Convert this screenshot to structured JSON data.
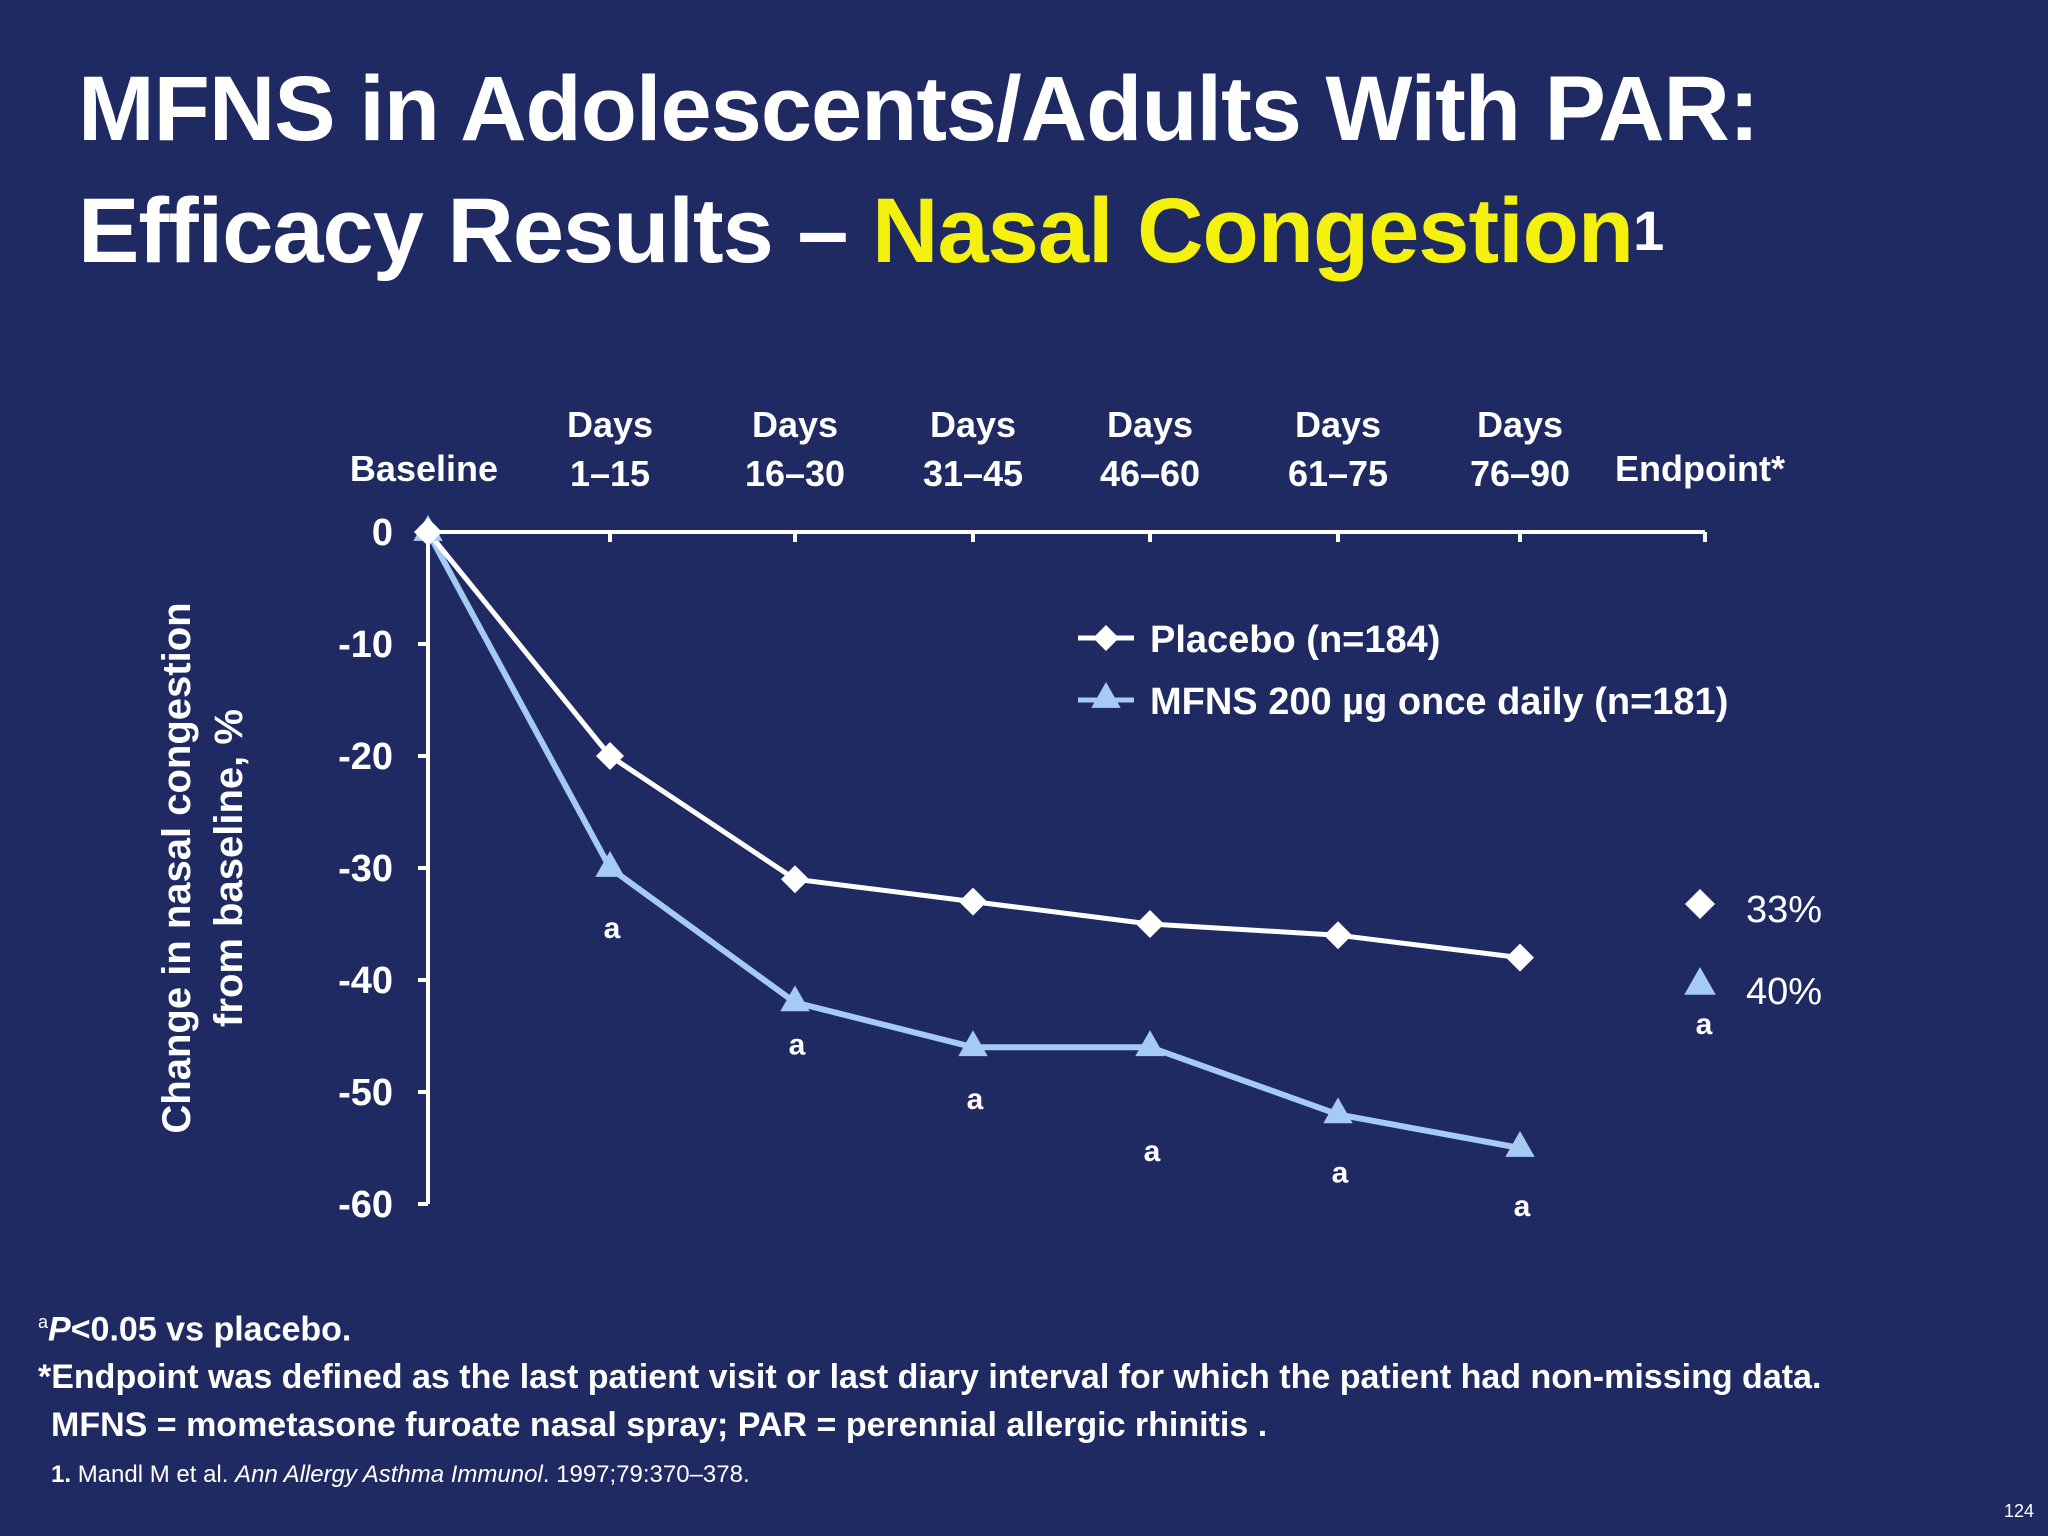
{
  "slide": {
    "title_line1": "MFNS in Adolescents/Adults With PAR:",
    "title_line2_prefix": "Efficacy Results – ",
    "title_line2_highlight": "Nasal Congestion",
    "title_superscript": "1",
    "page_number": "124"
  },
  "colors": {
    "background": "#1f2a63",
    "placebo": "#ffffff",
    "mfns": "#a6cbf2",
    "highlight": "#f5f10e"
  },
  "chart_data": {
    "type": "line",
    "ylabel_line1": "Change in nasal congestion",
    "ylabel_line2": "from baseline, %",
    "ylim": [
      -60,
      0
    ],
    "yticks": [
      0,
      -10,
      -20,
      -30,
      -40,
      -50,
      -60
    ],
    "categories": [
      [
        "Baseline"
      ],
      [
        "Days",
        "1–15"
      ],
      [
        "Days",
        "16–30"
      ],
      [
        "Days",
        "31–45"
      ],
      [
        "Days",
        "46–60"
      ],
      [
        "Days",
        "61–75"
      ],
      [
        "Days",
        "76–90"
      ],
      [
        "Endpoint*"
      ]
    ],
    "series": [
      {
        "name": "Placebo (n=184)",
        "marker": "diamond",
        "values": [
          0,
          -20,
          -31,
          -33,
          -35,
          -36,
          -38,
          null
        ]
      },
      {
        "name": "MFNS 200 µg once daily (n=181)",
        "marker": "triangle",
        "values": [
          0,
          -30,
          -42,
          -46,
          -46,
          -52,
          -55,
          null
        ],
        "annotations": [
          "",
          "a",
          "a",
          "a",
          "a",
          "a",
          "a",
          ""
        ]
      }
    ],
    "endpoint": {
      "placebo_label": "33%",
      "mfns_label": "40%",
      "mfns_annotation": "a"
    },
    "legend_position": "upper-right",
    "grid": false
  },
  "footnotes": {
    "significance_prefix": "P",
    "significance_sup": "a",
    "significance_text": "<0.05 vs placebo.",
    "endpoint_note": "*Endpoint was defined as the last patient visit or last diary interval for which the patient had non-missing data.",
    "abbreviations": "MFNS = mometasone furoate nasal spray; PAR = perennial allergic rhinitis .",
    "ref_number": "1.",
    "ref_authors": "Mandl M et al.",
    "ref_journal": "Ann Allergy Asthma Immunol",
    "ref_details": ". 1997;79:370–378."
  }
}
